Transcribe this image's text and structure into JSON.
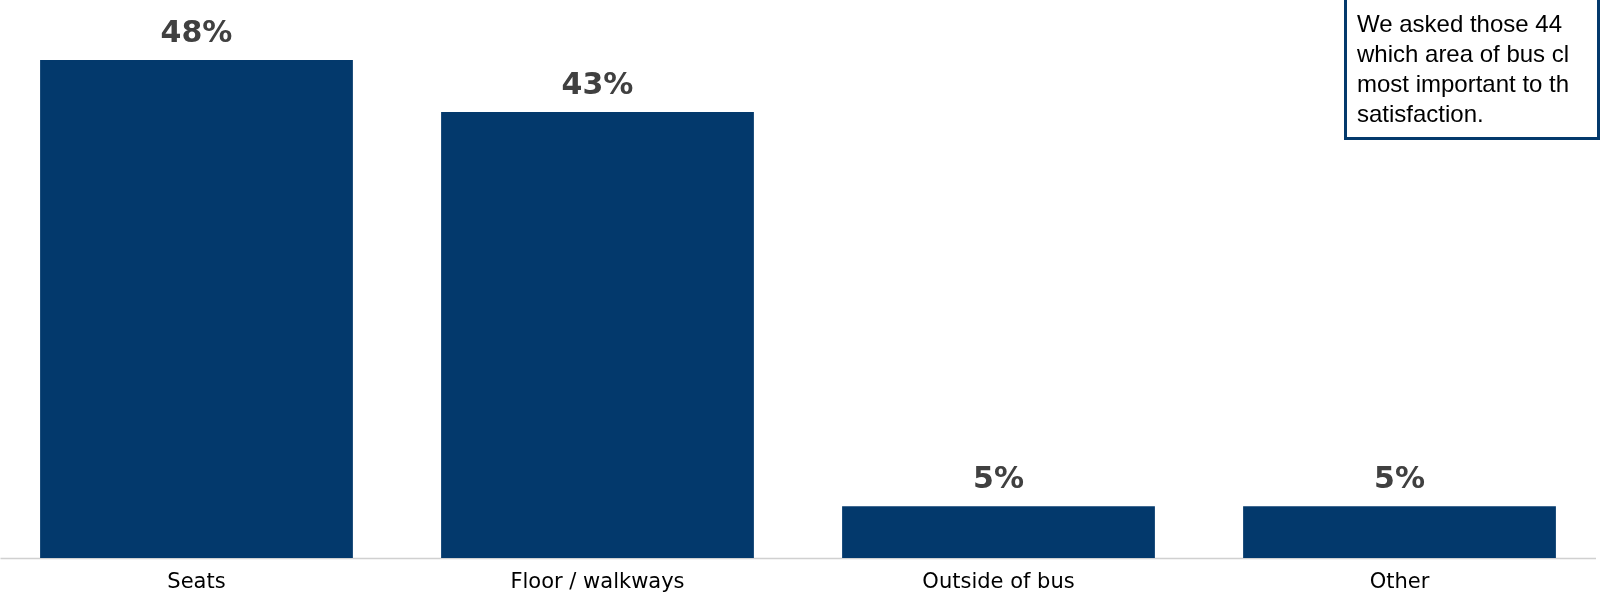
{
  "chart_data": {
    "type": "bar",
    "categories": [
      "Seats",
      "Floor / walkways",
      "Outside of bus",
      "Other"
    ],
    "values": [
      48,
      43,
      5,
      5
    ],
    "color": "#03396c",
    "value_labels": [
      "48%",
      "43%",
      "5%",
      "5%"
    ],
    "annotations": [
      "We asked those 44\nwhich area of bus cl\nmost important to th\nsatisfaction."
    ]
  }
}
